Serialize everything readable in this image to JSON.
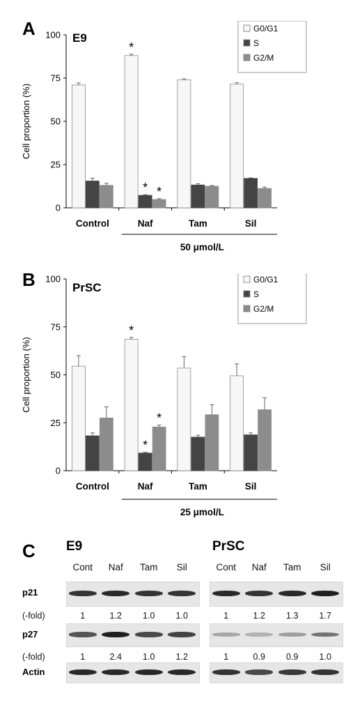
{
  "chart_data": [
    {
      "panel": "A",
      "type": "bar",
      "title": "E9",
      "ylabel": "Cell proportion  (%)",
      "ylim": [
        0,
        100
      ],
      "yticks": [
        0,
        25,
        50,
        75,
        100
      ],
      "categories": [
        "Control",
        "Naf",
        "Tam",
        "Sil"
      ],
      "bracket_label": "50 μmol/L",
      "legend_position": "top-right",
      "series": [
        {
          "name": "G0/G1",
          "color": "#f7f7f7",
          "values": [
            71,
            88,
            74,
            71.5
          ],
          "errors": [
            1.2,
            0.8,
            0.6,
            0.8
          ],
          "significant": [
            false,
            true,
            false,
            false
          ]
        },
        {
          "name": "S",
          "color": "#444444",
          "values": [
            15.5,
            7.2,
            13.2,
            17
          ],
          "errors": [
            1.6,
            0.4,
            0.7,
            0.3
          ],
          "significant": [
            false,
            true,
            false,
            false
          ]
        },
        {
          "name": "G2/M",
          "color": "#8c8c8c",
          "values": [
            13,
            4.8,
            12.5,
            11.2
          ],
          "errors": [
            1.2,
            0.5,
            0.4,
            0.8
          ],
          "significant": [
            false,
            true,
            false,
            false
          ]
        }
      ]
    },
    {
      "panel": "B",
      "type": "bar",
      "title": "PrSC",
      "ylabel": "Cell proportion  (%)",
      "ylim": [
        0,
        100
      ],
      "yticks": [
        0,
        25,
        50,
        75,
        100
      ],
      "categories": [
        "Control",
        "Naf",
        "Tam",
        "Sil"
      ],
      "bracket_label": "25 μmol/L",
      "legend_position": "top-right",
      "series": [
        {
          "name": "G0/G1",
          "color": "#f7f7f7",
          "values": [
            54.5,
            68.5,
            53.5,
            49.5
          ],
          "errors": [
            5.5,
            1.0,
            6.0,
            6.2
          ],
          "significant": [
            false,
            true,
            false,
            false
          ]
        },
        {
          "name": "S",
          "color": "#444444",
          "values": [
            18.2,
            9.2,
            17.5,
            18.7
          ],
          "errors": [
            1.5,
            0.4,
            1.0,
            1.0
          ],
          "significant": [
            false,
            true,
            false,
            false
          ]
        },
        {
          "name": "G2/M",
          "color": "#8c8c8c",
          "values": [
            27.5,
            22.8,
            29.2,
            31.8
          ],
          "errors": [
            5.8,
            1.0,
            5.2,
            6.2
          ],
          "significant": [
            false,
            true,
            false,
            false
          ]
        }
      ]
    }
  ],
  "significance_marker": "*",
  "panel_c": {
    "letter": "C",
    "groups": [
      {
        "title": "E9",
        "lanes": [
          "Cont",
          "Naf",
          "Tam",
          "Sil"
        ],
        "rows": [
          {
            "label": "p21",
            "band_intensity": [
              0.85,
              0.9,
              0.85,
              0.85
            ],
            "fold_label": "(-fold)",
            "fold": [
              "1",
              "1.2",
              "1.0",
              "1.0"
            ]
          },
          {
            "label": "p27",
            "band_intensity": [
              0.7,
              0.95,
              0.75,
              0.78
            ],
            "fold_label": "(-fold)",
            "fold": [
              "1",
              "2.4",
              "1.0",
              "1.2"
            ]
          },
          {
            "label": "Actin",
            "band_intensity": [
              0.9,
              0.9,
              0.9,
              0.9
            ]
          }
        ]
      },
      {
        "title": "PrSC",
        "lanes": [
          "Cont",
          "Naf",
          "Tam",
          "Sil"
        ],
        "rows": [
          {
            "label": "p21",
            "band_intensity": [
              0.9,
              0.85,
              0.9,
              0.95
            ],
            "fold": [
              "1",
              "1.2",
              "1.3",
              "1.7"
            ]
          },
          {
            "label": "p27",
            "band_intensity": [
              0.3,
              0.25,
              0.35,
              0.55
            ],
            "fold": [
              "1",
              "0.9",
              "0.9",
              "1.0"
            ]
          },
          {
            "label": "Actin",
            "band_intensity": [
              0.85,
              0.75,
              0.82,
              0.85
            ]
          }
        ]
      }
    ]
  }
}
